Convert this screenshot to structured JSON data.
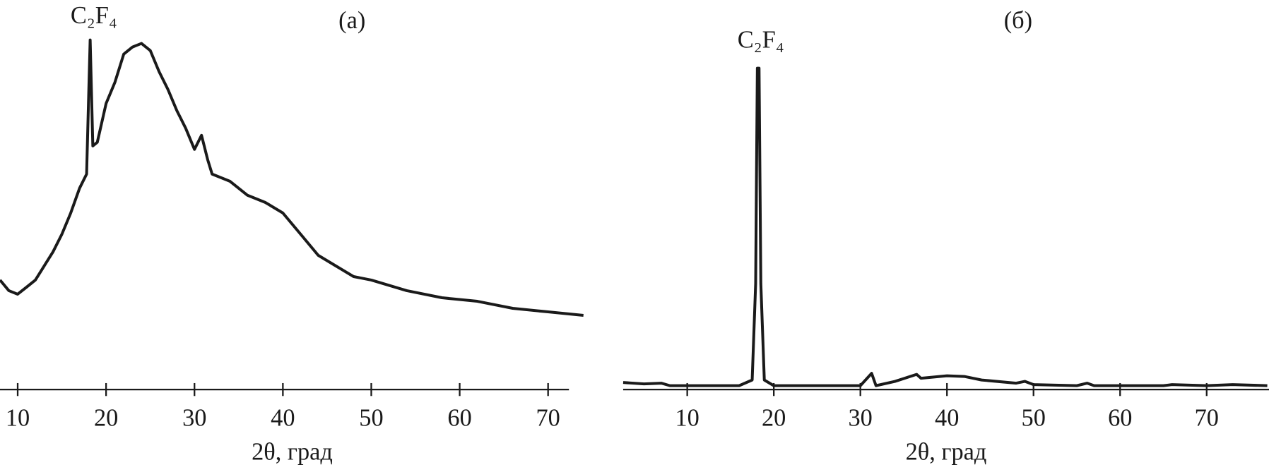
{
  "chart_data": [
    {
      "type": "line",
      "title": "(а)",
      "annotation": "C₂F₄",
      "x_label": "2θ, град",
      "color": "#1a1a1a",
      "x": [
        8,
        9,
        10,
        11,
        12,
        13,
        14,
        15,
        16,
        17,
        17.8,
        18.2,
        18.5,
        19,
        20,
        21,
        22,
        23,
        24,
        25,
        26,
        27,
        28,
        29,
        30,
        30.8,
        31.5,
        32,
        34,
        36,
        38,
        40,
        42,
        44,
        46,
        48,
        50,
        54,
        58,
        62,
        66,
        70,
        74
      ],
      "values": [
        31,
        28,
        27,
        29,
        31,
        35,
        39,
        44,
        50,
        57,
        61,
        99,
        69,
        70,
        81,
        87,
        95,
        97,
        98,
        96,
        90,
        85,
        79,
        74,
        68,
        72,
        65,
        61,
        59,
        55,
        53,
        50,
        44,
        38,
        35,
        32,
        31,
        28,
        26,
        25,
        23,
        22,
        21
      ],
      "xlim": [
        8,
        74.1
      ],
      "xticks": [
        10,
        20,
        30,
        40,
        50,
        60,
        70
      ],
      "ylim": [
        0,
        100
      ]
    },
    {
      "type": "line",
      "title": "(б)",
      "annotation": "C₂F₄",
      "x_label": "2θ, град",
      "color": "#1a1a1a",
      "x": [
        2.6,
        5,
        7,
        8,
        12,
        16,
        17.5,
        17.9,
        18.1,
        18.3,
        18.5,
        18.9,
        20,
        30,
        31.3,
        31.8,
        34,
        36.5,
        37,
        40,
        42,
        44,
        48,
        49,
        50,
        55,
        56.2,
        57,
        65,
        66,
        70,
        73,
        77
      ],
      "values": [
        2,
        1.6,
        1.8,
        1.1,
        1.1,
        1.1,
        2.7,
        30,
        91,
        91,
        30,
        2.7,
        1.1,
        1.1,
        4.6,
        1.1,
        2.3,
        4.3,
        3.2,
        3.9,
        3.7,
        2.7,
        1.8,
        2.3,
        1.4,
        1.1,
        1.8,
        1.1,
        1.1,
        1.4,
        1.1,
        1.4,
        1.1
      ],
      "xlim": [
        2.6,
        77.2
      ],
      "xticks": [
        10,
        20,
        30,
        40,
        50,
        60,
        70
      ],
      "ylim": [
        0,
        100
      ]
    }
  ]
}
